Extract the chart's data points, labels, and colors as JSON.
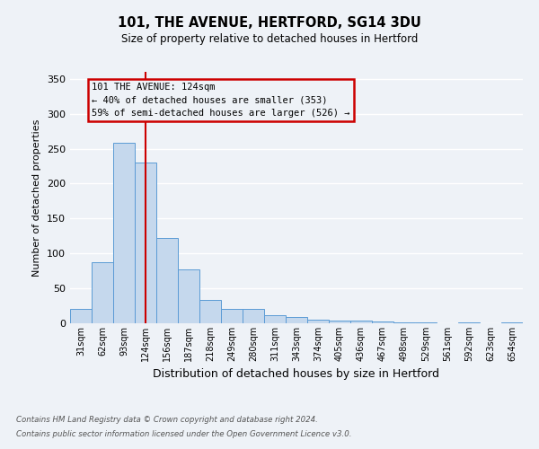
{
  "title": "101, THE AVENUE, HERTFORD, SG14 3DU",
  "subtitle": "Size of property relative to detached houses in Hertford",
  "xlabel": "Distribution of detached houses by size in Hertford",
  "ylabel": "Number of detached properties",
  "bar_color": "#c5d8ed",
  "bar_edge_color": "#5b9bd5",
  "bar_width": 1.0,
  "bin_labels": [
    "31sqm",
    "62sqm",
    "93sqm",
    "124sqm",
    "156sqm",
    "187sqm",
    "218sqm",
    "249sqm",
    "280sqm",
    "311sqm",
    "343sqm",
    "374sqm",
    "405sqm",
    "436sqm",
    "467sqm",
    "498sqm",
    "529sqm",
    "561sqm",
    "592sqm",
    "623sqm",
    "654sqm"
  ],
  "bin_values": [
    20,
    87,
    258,
    230,
    122,
    77,
    33,
    20,
    20,
    11,
    9,
    5,
    4,
    4,
    2,
    1,
    1,
    0,
    1,
    0,
    1
  ],
  "ylim": [
    0,
    360
  ],
  "yticks": [
    0,
    50,
    100,
    150,
    200,
    250,
    300,
    350
  ],
  "vline_x_index": 3,
  "vline_color": "#cc0000",
  "annotation_title": "101 THE AVENUE: 124sqm",
  "annotation_line1": "← 40% of detached houses are smaller (353)",
  "annotation_line2": "59% of semi-detached houses are larger (526) →",
  "annotation_box_color": "#cc0000",
  "background_color": "#eef2f7",
  "grid_color": "#ffffff",
  "footnote1": "Contains HM Land Registry data © Crown copyright and database right 2024.",
  "footnote2": "Contains public sector information licensed under the Open Government Licence v3.0."
}
